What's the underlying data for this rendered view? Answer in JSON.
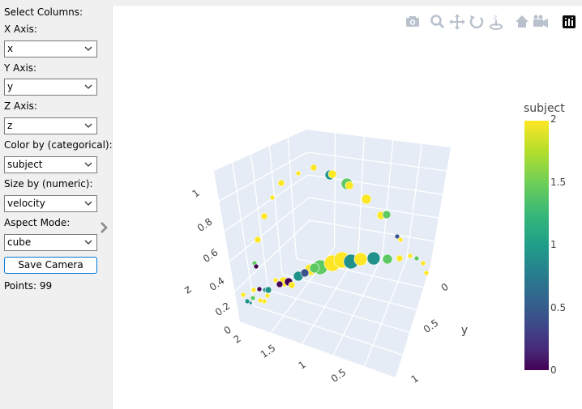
{
  "sidebar": {
    "heading": "Select Columns:",
    "x_label": "X Axis:",
    "x_value": "x",
    "y_label": "Y Axis:",
    "y_value": "y",
    "z_label": "Z Axis:",
    "z_value": "z",
    "color_label": "Color by (categorical):",
    "color_value": "subject",
    "size_label": "Size by (numeric):",
    "size_value": "velocity",
    "aspect_label": "Aspect Mode:",
    "aspect_value": "cube",
    "save_button": "Save Camera",
    "points_text": "Points: 99"
  },
  "modebar": {
    "icons": [
      "camera-icon",
      "zoom-icon",
      "pan-icon",
      "orbit-icon",
      "turntable-icon",
      "home-icon",
      "camera-view-icon",
      "plotly-logo-icon"
    ]
  },
  "colors": {
    "scene_bg": "#e5ecf6",
    "grid": "#ffffff",
    "sidebar_bg": "#f0f0f0",
    "button_border": "#0078d7",
    "viridis": [
      "#440154",
      "#3b528b",
      "#21918c",
      "#5ec962",
      "#fde725"
    ]
  },
  "chart_data": {
    "type": "scatter3d",
    "colorbar": {
      "title": "subject",
      "range": [
        0,
        2
      ],
      "ticks": [
        "2",
        "1.5",
        "1",
        "0.5",
        "0"
      ],
      "colorscale": "viridis"
    },
    "axes": {
      "x": {
        "ticks": [
          "2",
          "1.5",
          "1",
          "0.5"
        ],
        "title": ""
      },
      "y": {
        "title": "y",
        "ticks": [
          "0",
          "0.5",
          "1"
        ]
      },
      "z": {
        "title": "z",
        "ticks": [
          "0",
          "0.2",
          "0.4",
          "0.6",
          "0.8",
          "1"
        ]
      }
    },
    "points_count": 99
  }
}
